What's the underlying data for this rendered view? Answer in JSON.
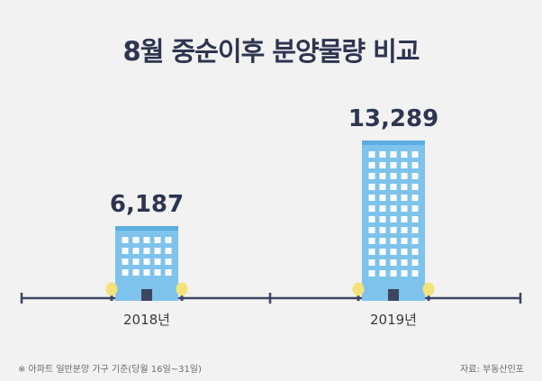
{
  "title": "8월 중순이후 분양물량 비교",
  "footnote": "※ 아파트 일반분양 가구 기준(당월 16일~31일)",
  "source": "자료: 부동산인포",
  "colors": {
    "building": "#7ec3ec",
    "building_top": "#5aaee0",
    "window": "#ffffff",
    "door": "#3e4560",
    "tree": "#f3e37a",
    "trunk": "#3e4560",
    "axis": "#3e4560",
    "value_text": "#2e3550",
    "label_text": "#3a3a3a",
    "background": "#f2f2f2"
  },
  "icons": {
    "building": "building-icon",
    "tree": "tree-icon"
  },
  "chart_data": {
    "type": "bar",
    "categories": [
      "2018년",
      "2019년"
    ],
    "values": [
      6187,
      13289
    ],
    "value_labels": [
      "6,187",
      "13,289"
    ],
    "title": "8월 중순이후 분양물량 비교",
    "xlabel": "",
    "ylabel": "",
    "ylim": [
      0,
      13289
    ],
    "grid": false,
    "legend": "none"
  }
}
